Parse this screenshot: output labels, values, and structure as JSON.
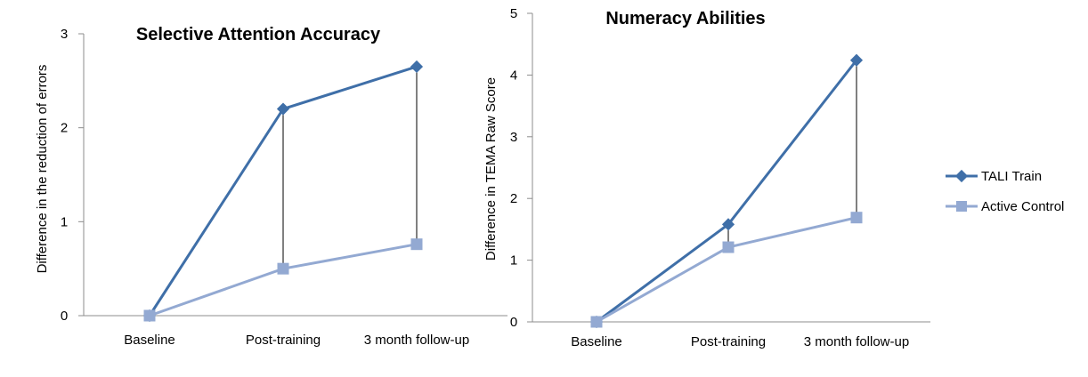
{
  "colors": {
    "series_a": "#3f6fa8",
    "series_b": "#93a9d2",
    "axis": "#8c8c8c"
  },
  "legend": {
    "position": "right",
    "items": [
      "TALI Train",
      "Active Control"
    ]
  },
  "chart_data": [
    {
      "type": "line",
      "title": "Selective Attention  Accuracy",
      "xlabel": "",
      "ylabel": "Difference in the reduction of errors",
      "categories": [
        "Baseline",
        "Post-training",
        "3 month follow-up"
      ],
      "ylim": [
        0,
        3
      ],
      "yticks": [
        "0",
        "1",
        "2",
        "3"
      ],
      "grid": false,
      "drop_lines": true,
      "series": [
        {
          "name": "TALI Train",
          "marker": "diamond",
          "values": [
            0,
            2.2,
            2.65
          ]
        },
        {
          "name": "Active Control",
          "marker": "square",
          "values": [
            0,
            0.5,
            0.76
          ]
        }
      ]
    },
    {
      "type": "line",
      "title": "Numeracy Abilities",
      "xlabel": "",
      "ylabel": "Difference in TEMA Raw Score",
      "categories": [
        "Baseline",
        "Post-training",
        "3 month follow-up"
      ],
      "ylim": [
        0,
        5
      ],
      "yticks": [
        "0",
        "1",
        "2",
        "3",
        "4",
        "5"
      ],
      "grid": false,
      "drop_lines": true,
      "series": [
        {
          "name": "TALI Train",
          "marker": "diamond",
          "values": [
            0,
            1.58,
            4.24
          ]
        },
        {
          "name": "Active Control",
          "marker": "square",
          "values": [
            0,
            1.21,
            1.69
          ]
        }
      ]
    }
  ]
}
